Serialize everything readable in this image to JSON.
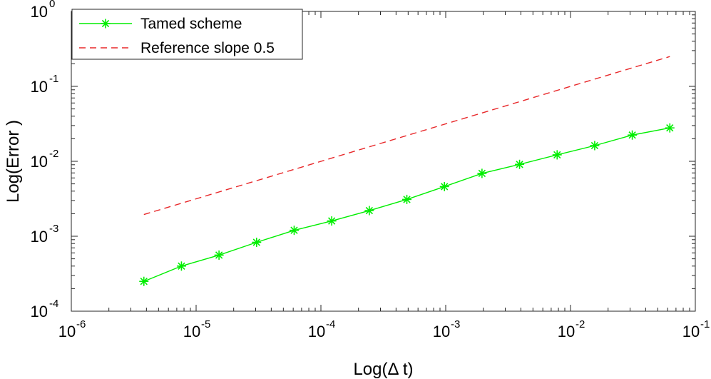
{
  "chart_data": {
    "type": "line",
    "title": "",
    "xlabel": "Log(Δ t)",
    "ylabel": "Log(Error )",
    "xscale": "log",
    "yscale": "log",
    "xlim": [
      1e-06,
      0.1
    ],
    "ylim": [
      0.0001,
      1
    ],
    "grid": false,
    "legend_position": "top-left",
    "x_ticks": [
      {
        "base": "10",
        "exp": "-6"
      },
      {
        "base": "10",
        "exp": "-5"
      },
      {
        "base": "10",
        "exp": "-4"
      },
      {
        "base": "10",
        "exp": "-3"
      },
      {
        "base": "10",
        "exp": "-2"
      },
      {
        "base": "10",
        "exp": "-1"
      }
    ],
    "y_ticks": [
      {
        "base": "10",
        "exp": "-4"
      },
      {
        "base": "10",
        "exp": "-3"
      },
      {
        "base": "10",
        "exp": "-2"
      },
      {
        "base": "10",
        "exp": "-1"
      },
      {
        "base": "10",
        "exp": "0"
      }
    ],
    "x": [
      3.8147e-06,
      7.6294e-06,
      1.5259e-05,
      3.0518e-05,
      6.1035e-05,
      0.00012207,
      0.00024414,
      0.00048828,
      0.00097656,
      0.0019531,
      0.0039063,
      0.0078125,
      0.015625,
      0.03125,
      0.0625
    ],
    "series": [
      {
        "name": "Tamed scheme",
        "color": "#00ee00",
        "style": "solid",
        "marker": "asterisk",
        "values": [
          0.00025,
          0.0004,
          0.00056,
          0.00083,
          0.0012,
          0.0016,
          0.0022,
          0.0031,
          0.0046,
          0.0069,
          0.0091,
          0.0122,
          0.0162,
          0.0224,
          0.0279
        ]
      },
      {
        "name": "Reference slope 0.5",
        "color": "#e8282a",
        "style": "dashed",
        "marker": "none",
        "x": [
          3.8147e-06,
          0.0625
        ],
        "values": [
          0.00195,
          0.25
        ]
      }
    ]
  }
}
